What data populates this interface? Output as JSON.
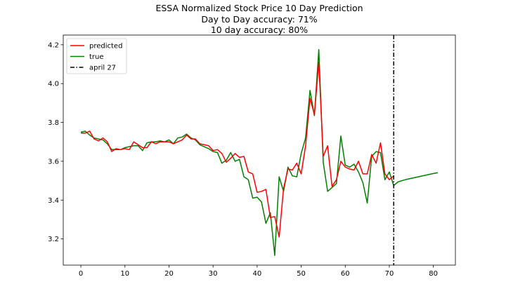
{
  "chart_data": {
    "type": "line",
    "title": "ESSA Normalized Stock Price 10 Day Prediction",
    "subtitle_lines": [
      "Day to Day accuracy: 71%",
      "10 day accuracy: 80%"
    ],
    "xlabel": "",
    "ylabel": "",
    "xlim": [
      -4,
      85
    ],
    "ylim": [
      3.065,
      4.25
    ],
    "xticks": [
      0,
      10,
      20,
      30,
      40,
      50,
      60,
      70,
      80
    ],
    "yticks": [
      3.2,
      3.4,
      3.6,
      3.8,
      4.0,
      4.2
    ],
    "ytick_labels": [
      "3.2",
      "3.4",
      "3.6",
      "3.8",
      "4.0",
      "4.2"
    ],
    "grid": false,
    "legend_position": "upper-left",
    "series": [
      {
        "name": "predicted",
        "color": "#ff0000",
        "x": [
          0,
          1,
          2,
          3,
          4,
          5,
          6,
          7,
          8,
          9,
          10,
          11,
          12,
          13,
          14,
          15,
          16,
          17,
          18,
          19,
          20,
          21,
          22,
          23,
          24,
          25,
          26,
          27,
          28,
          29,
          30,
          31,
          32,
          33,
          34,
          35,
          36,
          37,
          38,
          39,
          40,
          41,
          42,
          43,
          44,
          45,
          46,
          47,
          48,
          49,
          50,
          51,
          52,
          53,
          54,
          55,
          56,
          57,
          58,
          59,
          60,
          61,
          62,
          63,
          64,
          65,
          66,
          67,
          68,
          69,
          70,
          71
        ],
        "values": [
          3.745,
          3.745,
          3.755,
          3.715,
          3.705,
          3.72,
          3.7,
          3.65,
          3.665,
          3.66,
          3.665,
          3.66,
          3.7,
          3.685,
          3.67,
          3.67,
          3.7,
          3.69,
          3.7,
          3.7,
          3.7,
          3.69,
          3.7,
          3.71,
          3.735,
          3.715,
          3.715,
          3.69,
          3.685,
          3.68,
          3.655,
          3.66,
          3.64,
          3.595,
          3.615,
          3.64,
          3.62,
          3.625,
          3.545,
          3.535,
          3.44,
          3.445,
          3.455,
          3.31,
          3.315,
          3.21,
          3.46,
          3.56,
          3.555,
          3.59,
          3.535,
          3.68,
          3.925,
          3.84,
          4.11,
          3.625,
          3.68,
          3.47,
          3.505,
          3.6,
          3.57,
          3.56,
          3.555,
          3.6,
          3.535,
          3.535,
          3.635,
          3.59,
          3.695,
          3.535,
          3.505,
          3.525
        ]
      },
      {
        "name": "true",
        "color": "#008000",
        "x": [
          0,
          1,
          2,
          3,
          4,
          5,
          6,
          7,
          8,
          9,
          10,
          11,
          12,
          13,
          14,
          15,
          16,
          17,
          18,
          19,
          20,
          21,
          22,
          23,
          24,
          25,
          26,
          27,
          28,
          29,
          30,
          31,
          32,
          33,
          34,
          35,
          36,
          37,
          38,
          39,
          40,
          41,
          42,
          43,
          44,
          45,
          46,
          47,
          48,
          49,
          50,
          51,
          52,
          53,
          54,
          55,
          56,
          57,
          58,
          59,
          60,
          61,
          62,
          63,
          64,
          65,
          66,
          67,
          68,
          69,
          70,
          71,
          72,
          73,
          74,
          75,
          76,
          77,
          78,
          79,
          80,
          81
        ],
        "values": [
          3.75,
          3.755,
          3.735,
          3.72,
          3.715,
          3.71,
          3.69,
          3.66,
          3.66,
          3.66,
          3.67,
          3.675,
          3.68,
          3.68,
          3.655,
          3.695,
          3.7,
          3.7,
          3.705,
          3.7,
          3.71,
          3.69,
          3.72,
          3.725,
          3.74,
          3.72,
          3.71,
          3.685,
          3.675,
          3.665,
          3.65,
          3.645,
          3.59,
          3.605,
          3.645,
          3.6,
          3.61,
          3.52,
          3.505,
          3.41,
          3.415,
          3.39,
          3.28,
          3.335,
          3.115,
          3.52,
          3.445,
          3.57,
          3.525,
          3.52,
          3.64,
          3.72,
          3.965,
          3.835,
          4.175,
          3.595,
          3.445,
          3.465,
          3.485,
          3.73,
          3.58,
          3.57,
          3.585,
          3.545,
          3.49,
          3.385,
          3.625,
          3.65,
          3.645,
          3.505,
          3.545,
          3.475,
          3.494,
          3.501,
          3.507,
          3.512,
          3.517,
          3.522,
          3.527,
          3.532,
          3.537,
          3.541
        ]
      }
    ],
    "vline": {
      "name": "april 27",
      "x": 71,
      "color": "#000000",
      "style": "dash-dot"
    }
  }
}
